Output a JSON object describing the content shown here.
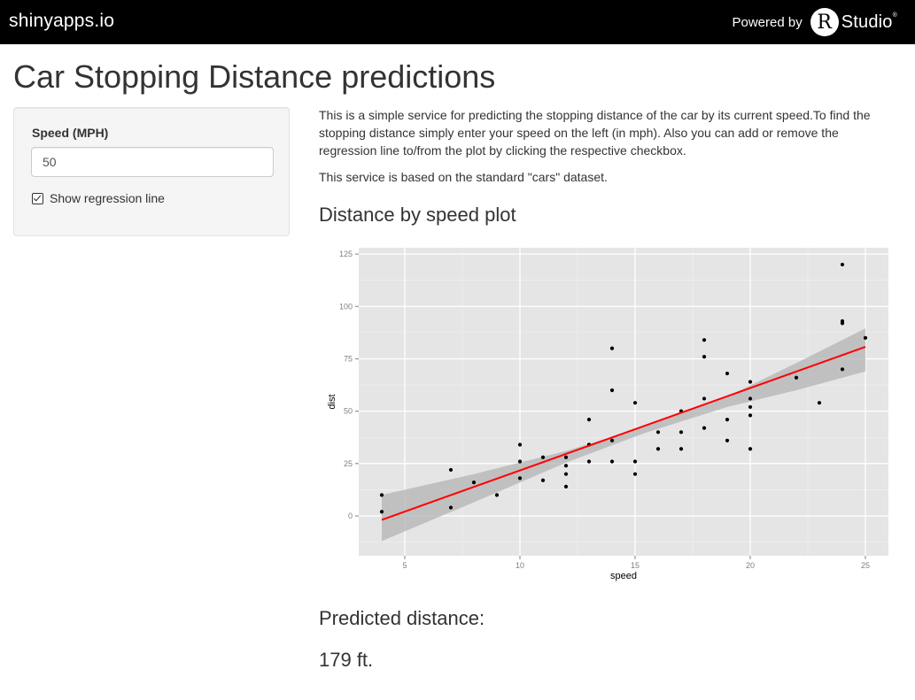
{
  "header": {
    "brand": "shinyapps.io",
    "powered_by": "Powered by",
    "r_logo_letter": "R",
    "studio_text": "Studio",
    "studio_mark": "®"
  },
  "title": "Car Stopping Distance predictions",
  "sidebar": {
    "speed_label": "Speed (MPH)",
    "speed_value": "50",
    "checkbox_label": "Show regression line",
    "checkbox_checked": true
  },
  "main": {
    "intro": "This is a simple service for predicting the stopping distance of the car by its current speed.To find the stopping distance simply enter your speed on the left (in mph). Also you can add or remove the regression line to/from the plot by clicking the respective checkbox.",
    "dataset_note": "This service is based on the standard \"cars\" dataset.",
    "plot_heading": "Distance by speed plot",
    "prediction_heading": "Predicted distance:",
    "prediction_value": "179 ft."
  },
  "chart_data": {
    "type": "scatter",
    "xlabel": "speed",
    "ylabel": "dist",
    "xlim": [
      3.0,
      26.0
    ],
    "ylim": [
      -19,
      128
    ],
    "x_ticks": [
      5,
      10,
      15,
      20,
      25
    ],
    "y_ticks": [
      0,
      25,
      50,
      75,
      100,
      125
    ],
    "grid": true,
    "background": "#e5e5e5",
    "point_color": "#000000",
    "line_color": "#ff0000",
    "band_color": "#b3b3b3",
    "x": [
      4,
      4,
      7,
      7,
      8,
      9,
      10,
      10,
      10,
      11,
      11,
      12,
      12,
      12,
      12,
      13,
      13,
      13,
      13,
      14,
      14,
      14,
      14,
      15,
      15,
      15,
      16,
      16,
      17,
      17,
      17,
      18,
      18,
      18,
      18,
      19,
      19,
      19,
      20,
      20,
      20,
      20,
      20,
      22,
      23,
      24,
      24,
      24,
      24,
      25
    ],
    "y": [
      2,
      10,
      4,
      22,
      16,
      10,
      18,
      26,
      34,
      17,
      28,
      14,
      20,
      24,
      28,
      26,
      34,
      34,
      46,
      26,
      36,
      60,
      80,
      20,
      26,
      54,
      32,
      40,
      32,
      40,
      50,
      42,
      56,
      76,
      84,
      36,
      46,
      68,
      32,
      48,
      52,
      56,
      64,
      66,
      54,
      70,
      92,
      93,
      120,
      85
    ],
    "regression": {
      "intercept": -17.579,
      "slope": 3.932,
      "x_range": [
        4,
        25
      ],
      "band_x": [
        4,
        8,
        12,
        15.4,
        19,
        22,
        25
      ],
      "band_lower": [
        -12,
        6.5,
        25.5,
        39.5,
        52,
        60,
        69
      ],
      "band_upper": [
        10,
        20,
        31,
        42.5,
        57,
        73,
        89.5
      ]
    }
  }
}
